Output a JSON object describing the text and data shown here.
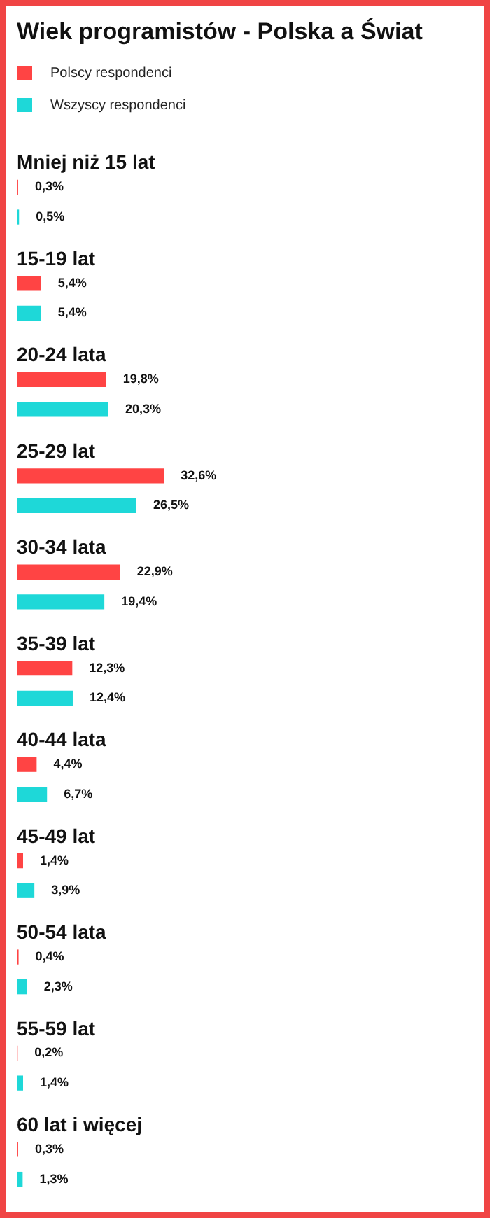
{
  "chart_data": {
    "type": "bar",
    "orientation": "horizontal",
    "title": "Wiek programistów - Polska a Świat",
    "categories": [
      "Mniej niż 15 lat",
      "15-19 lat",
      "20-24 lata",
      "25-29 lat",
      "30-34 lata",
      "35-39 lat",
      "40-44 lata",
      "45-49 lat",
      "50-54 lata",
      "55-59 lat",
      "60 lat i więcej"
    ],
    "series": [
      {
        "name": "Polscy respondenci",
        "color": "#ff4444",
        "values": [
          0.3,
          5.4,
          19.8,
          32.6,
          22.9,
          12.3,
          4.4,
          1.4,
          0.4,
          0.2,
          0.3
        ],
        "value_labels": [
          "0,3%",
          "5,4%",
          "19,8%",
          "32,6%",
          "22,9%",
          "12,3%",
          "4,4%",
          "1,4%",
          "0,4%",
          "0,2%",
          "0,3%"
        ]
      },
      {
        "name": "Wszyscy respondenci",
        "color": "#1ed8d8",
        "values": [
          0.5,
          5.4,
          20.3,
          26.5,
          19.4,
          12.4,
          6.7,
          3.9,
          2.3,
          1.4,
          1.3
        ],
        "value_labels": [
          "0,5%",
          "5,4%",
          "20,3%",
          "26,5%",
          "19,4%",
          "12,4%",
          "6,7%",
          "3,9%",
          "2,3%",
          "1,4%",
          "1,3%"
        ]
      }
    ],
    "tick_labels": "y",
    "legend": "top"
  }
}
